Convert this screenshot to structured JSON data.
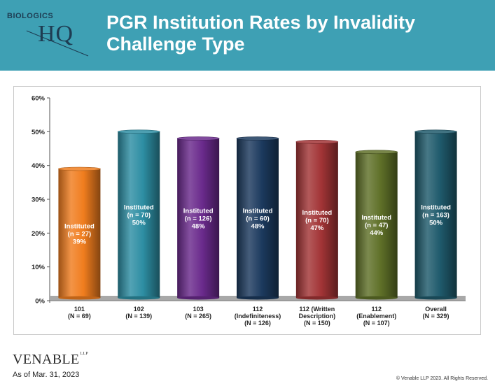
{
  "header": {
    "title_line1": "PGR Institution Rates by Invalidity",
    "title_line2": "Challenge Type",
    "logo_top": "BIOLOGICS",
    "logo_main": "HQ",
    "background": "#3ea0b4"
  },
  "chart_data": {
    "type": "bar",
    "ylim": [
      0,
      60
    ],
    "yticks": [
      "0%",
      "10%",
      "20%",
      "30%",
      "40%",
      "50%",
      "60%"
    ],
    "categories": [
      [
        "101",
        "(N = 69)"
      ],
      [
        "102",
        "(N = 139)"
      ],
      [
        "103",
        "(N = 265)"
      ],
      [
        "112",
        "(Indefiniteness)",
        "(N = 126)"
      ],
      [
        "112 (Written",
        "Description)",
        "(N = 150)"
      ],
      [
        "112",
        "(Enablement)",
        "(N = 107)"
      ],
      [
        "Overall",
        "(N = 329)"
      ]
    ],
    "values": [
      39,
      50,
      48,
      48,
      47,
      44,
      50
    ],
    "bar_labels": [
      [
        "Instituted",
        "(n = 27)",
        "39%"
      ],
      [
        "Instituted",
        "(n = 70)",
        "50%"
      ],
      [
        "Instituted",
        "(n = 126)",
        "48%"
      ],
      [
        "Instituted",
        "(n = 60)",
        "48%"
      ],
      [
        "Instituted",
        "(n = 70)",
        "47%"
      ],
      [
        "Instituted",
        "(n = 47)",
        "44%"
      ],
      [
        "Instituted",
        "(n = 163)",
        "50%"
      ]
    ],
    "colors": [
      "#f07d1e",
      "#2d8ea3",
      "#6a2a8c",
      "#1c3a5e",
      "#a23436",
      "#5f7028",
      "#1f5a6c"
    ],
    "grid": false
  },
  "footer": {
    "firm": "VENABLE",
    "firm_suffix": "LLP",
    "as_of": "As of Mar. 31, 2023",
    "copyright": "© Venable LLP 2023. All Rights Reserved."
  }
}
